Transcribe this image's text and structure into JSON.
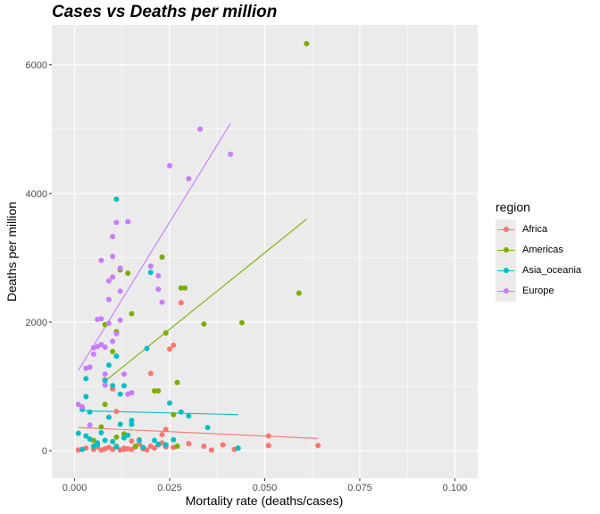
{
  "chart_data": {
    "type": "scatter",
    "title": "Cases vs Deaths per million",
    "xlabel": "Mortality rate (deaths/cases)",
    "ylabel": "Deaths per million",
    "xlim": [
      -0.006,
      0.106
    ],
    "ylim": [
      -430,
      6620
    ],
    "x_ticks": [
      0.0,
      0.025,
      0.05,
      0.075,
      0.1
    ],
    "x_tick_labels": [
      "0.000",
      "0.025",
      "0.050",
      "0.075",
      "0.100"
    ],
    "y_ticks": [
      0,
      2000,
      4000,
      6000
    ],
    "y_tick_labels": [
      "0",
      "2000",
      "4000",
      "6000"
    ],
    "grid": true,
    "legend": {
      "title": "region",
      "position": "right"
    },
    "series": [
      {
        "name": "Africa",
        "color": "#F8766D",
        "trend": [
          [
            0.001,
            360
          ],
          [
            0.064,
            190
          ]
        ],
        "points": [
          [
            0.001,
            10
          ],
          [
            0.003,
            40
          ],
          [
            0.005,
            20
          ],
          [
            0.006,
            60
          ],
          [
            0.007,
            10
          ],
          [
            0.008,
            30
          ],
          [
            0.009,
            50
          ],
          [
            0.01,
            20
          ],
          [
            0.011,
            70
          ],
          [
            0.012,
            10
          ],
          [
            0.013,
            40
          ],
          [
            0.014,
            30
          ],
          [
            0.015,
            20
          ],
          [
            0.016,
            60
          ],
          [
            0.017,
            100
          ],
          [
            0.018,
            30
          ],
          [
            0.019,
            10
          ],
          [
            0.02,
            70
          ],
          [
            0.021,
            40
          ],
          [
            0.022,
            90
          ],
          [
            0.023,
            120
          ],
          [
            0.024,
            60
          ],
          [
            0.026,
            50
          ],
          [
            0.03,
            110
          ],
          [
            0.034,
            70
          ],
          [
            0.036,
            10
          ],
          [
            0.039,
            90
          ],
          [
            0.042,
            20
          ],
          [
            0.051,
            80
          ],
          [
            0.064,
            80
          ],
          [
            0.02,
            1200
          ],
          [
            0.025,
            1580
          ],
          [
            0.026,
            1640
          ],
          [
            0.028,
            2300
          ],
          [
            0.008,
            1100
          ],
          [
            0.01,
            960
          ],
          [
            0.011,
            610
          ],
          [
            0.017,
            170
          ],
          [
            0.023,
            250
          ],
          [
            0.024,
            330
          ],
          [
            0.051,
            230
          ],
          [
            0.013,
            20
          ],
          [
            0.015,
            150
          ]
        ]
      },
      {
        "name": "Americas",
        "color": "#7CAE00",
        "trend": [
          [
            0.008,
            1080
          ],
          [
            0.061,
            3600
          ]
        ],
        "points": [
          [
            0.007,
            370
          ],
          [
            0.008,
            1960
          ],
          [
            0.008,
            720
          ],
          [
            0.01,
            1540
          ],
          [
            0.011,
            1850
          ],
          [
            0.012,
            2810
          ],
          [
            0.014,
            2760
          ],
          [
            0.015,
            2130
          ],
          [
            0.021,
            930
          ],
          [
            0.022,
            930
          ],
          [
            0.023,
            3010
          ],
          [
            0.024,
            1830
          ],
          [
            0.026,
            560
          ],
          [
            0.027,
            1060
          ],
          [
            0.028,
            2530
          ],
          [
            0.029,
            2530
          ],
          [
            0.034,
            1970
          ],
          [
            0.044,
            1990
          ],
          [
            0.059,
            2450
          ],
          [
            0.061,
            6330
          ],
          [
            0.011,
            210
          ],
          [
            0.013,
            260
          ],
          [
            0.016,
            70
          ],
          [
            0.027,
            70
          ],
          [
            0.005,
            160
          ]
        ]
      },
      {
        "name": "Asia_oceania",
        "color": "#00BFC4",
        "trend": [
          [
            0.002,
            620
          ],
          [
            0.043,
            560
          ]
        ],
        "points": [
          [
            0.001,
            270
          ],
          [
            0.002,
            20
          ],
          [
            0.002,
            640
          ],
          [
            0.003,
            1120
          ],
          [
            0.003,
            840
          ],
          [
            0.004,
            600
          ],
          [
            0.005,
            70
          ],
          [
            0.006,
            120
          ],
          [
            0.007,
            280
          ],
          [
            0.008,
            1090
          ],
          [
            0.009,
            1330
          ],
          [
            0.01,
            1010
          ],
          [
            0.011,
            3910
          ],
          [
            0.011,
            1470
          ],
          [
            0.012,
            880
          ],
          [
            0.012,
            410
          ],
          [
            0.013,
            1010
          ],
          [
            0.014,
            240
          ],
          [
            0.015,
            470
          ],
          [
            0.017,
            160
          ],
          [
            0.019,
            1590
          ],
          [
            0.02,
            2770
          ],
          [
            0.022,
            100
          ],
          [
            0.024,
            90
          ],
          [
            0.025,
            740
          ],
          [
            0.028,
            600
          ],
          [
            0.03,
            540
          ],
          [
            0.035,
            360
          ],
          [
            0.043,
            40
          ],
          [
            0.003,
            230
          ],
          [
            0.004,
            180
          ],
          [
            0.006,
            90
          ],
          [
            0.008,
            160
          ],
          [
            0.009,
            520
          ],
          [
            0.01,
            140
          ],
          [
            0.011,
            60
          ],
          [
            0.013,
            200
          ],
          [
            0.015,
            410
          ],
          [
            0.018,
            50
          ],
          [
            0.021,
            160
          ],
          [
            0.026,
            170
          ]
        ]
      },
      {
        "name": "Europe",
        "color": "#C77CFF",
        "trend": [
          [
            0.001,
            1250
          ],
          [
            0.041,
            5090
          ]
        ],
        "points": [
          [
            0.001,
            720
          ],
          [
            0.002,
            680
          ],
          [
            0.003,
            1280
          ],
          [
            0.004,
            400
          ],
          [
            0.005,
            1500
          ],
          [
            0.005,
            1600
          ],
          [
            0.006,
            1620
          ],
          [
            0.006,
            2040
          ],
          [
            0.007,
            2050
          ],
          [
            0.007,
            2960
          ],
          [
            0.007,
            1650
          ],
          [
            0.008,
            1610
          ],
          [
            0.008,
            1020
          ],
          [
            0.008,
            1190
          ],
          [
            0.009,
            2350
          ],
          [
            0.009,
            2640
          ],
          [
            0.009,
            1980
          ],
          [
            0.01,
            2700
          ],
          [
            0.01,
            3020
          ],
          [
            0.01,
            3330
          ],
          [
            0.01,
            1700
          ],
          [
            0.011,
            3550
          ],
          [
            0.011,
            1820
          ],
          [
            0.012,
            2840
          ],
          [
            0.012,
            2480
          ],
          [
            0.013,
            1190
          ],
          [
            0.014,
            3560
          ],
          [
            0.015,
            900
          ],
          [
            0.02,
            2870
          ],
          [
            0.022,
            2720
          ],
          [
            0.022,
            2510
          ],
          [
            0.023,
            2310
          ],
          [
            0.025,
            4430
          ],
          [
            0.03,
            4230
          ],
          [
            0.033,
            5000
          ],
          [
            0.041,
            4610
          ],
          [
            0.004,
            1300
          ],
          [
            0.012,
            2030
          ],
          [
            0.014,
            880
          ]
        ]
      }
    ]
  }
}
